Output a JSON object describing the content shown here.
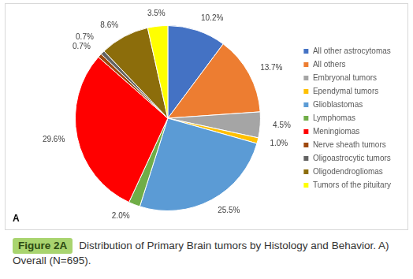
{
  "chart_data": {
    "type": "pie",
    "categories": [
      "All other astrocytomas",
      "All others",
      "Embryonal tumors",
      "Ependymal tumors",
      "Glioblastomas",
      "Lymphomas",
      "Meningiomas",
      "Nerve sheath tumors",
      "Oligoastrocytic tumors",
      "Oligodendrogliomas",
      "Tumors of the pituitary"
    ],
    "values": [
      10.2,
      13.7,
      4.5,
      1.0,
      25.5,
      2.0,
      29.6,
      0.7,
      0.7,
      8.6,
      3.5
    ],
    "value_labels": [
      "10.2%",
      "13.7%",
      "4.5%",
      "1.0%",
      "25.5%",
      "2.0%",
      "29.6%",
      "0.7%",
      "0.7%",
      "8.6%",
      "3.5%"
    ],
    "colors": [
      "#4472c4",
      "#ed7d31",
      "#a5a5a5",
      "#ffc000",
      "#5b9bd5",
      "#70ad47",
      "#ff0000",
      "#9e480e",
      "#636363",
      "#8c6d0b",
      "#ffff00"
    ],
    "data_labels": true,
    "legend": "right",
    "annotations": [
      "A"
    ]
  },
  "figure": {
    "label": "Figure 2A",
    "caption": "Distribution of Primary Brain tumors by Histology and Behavior. A) Overall (N=695)."
  }
}
